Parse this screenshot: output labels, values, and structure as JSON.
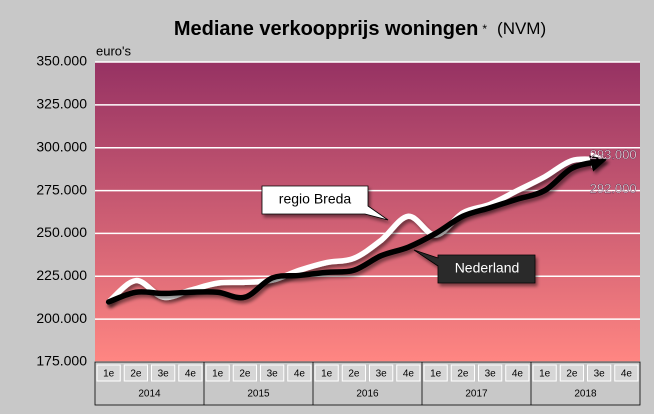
{
  "chart_data": {
    "type": "line",
    "title": "Mediane verkoopprijs woningen",
    "title_mark": "*",
    "title_source": "(NVM)",
    "y_label": "euro's",
    "categories": [
      "1e",
      "2e",
      "3e",
      "4e",
      "1e",
      "2e",
      "3e",
      "4e",
      "1e",
      "2e",
      "3e",
      "4e",
      "1e",
      "2e",
      "3e",
      "4e",
      "1e",
      "2e",
      "3e",
      "4e"
    ],
    "years": [
      "2014",
      "2015",
      "2016",
      "2017",
      "2018"
    ],
    "series": [
      {
        "name": "regio Breda",
        "color": "#ffffff",
        "values": [
          210000,
          222500,
          212800,
          216900,
          221000,
          221500,
          222700,
          228500,
          233000,
          235500,
          246000,
          260000,
          249000,
          262000,
          267000,
          275000,
          283000,
          292500,
          293000,
          null
        ],
        "value_labels": [
          null,
          null,
          null,
          null,
          null,
          null,
          null,
          null,
          null,
          null,
          null,
          null,
          null,
          null,
          null,
          null,
          null,
          null,
          "293.000",
          null
        ]
      },
      {
        "name": "Nederland",
        "color": "#000000",
        "values": [
          210000,
          215700,
          215000,
          215700,
          215700,
          212800,
          224000,
          225500,
          227300,
          228500,
          237000,
          242000,
          250000,
          260000,
          265000,
          270000,
          275000,
          288000,
          292000,
          null
        ],
        "value_labels": [
          null,
          null,
          null,
          null,
          null,
          null,
          null,
          null,
          null,
          null,
          null,
          null,
          null,
          null,
          null,
          null,
          null,
          null,
          "292.000",
          null
        ]
      }
    ],
    "ylim": [
      175000,
      350000
    ],
    "yticks": [
      {
        "value": 175000,
        "label": "175.000"
      },
      {
        "value": 200000,
        "label": "200.000"
      },
      {
        "value": 225000,
        "label": "225.000"
      },
      {
        "value": 250000,
        "label": "250.000"
      },
      {
        "value": 275000,
        "label": "275.000"
      },
      {
        "value": 300000,
        "label": "300.000"
      },
      {
        "value": 325000,
        "label": "325.000"
      },
      {
        "value": 350000,
        "label": "350.000"
      }
    ],
    "grid": true
  }
}
